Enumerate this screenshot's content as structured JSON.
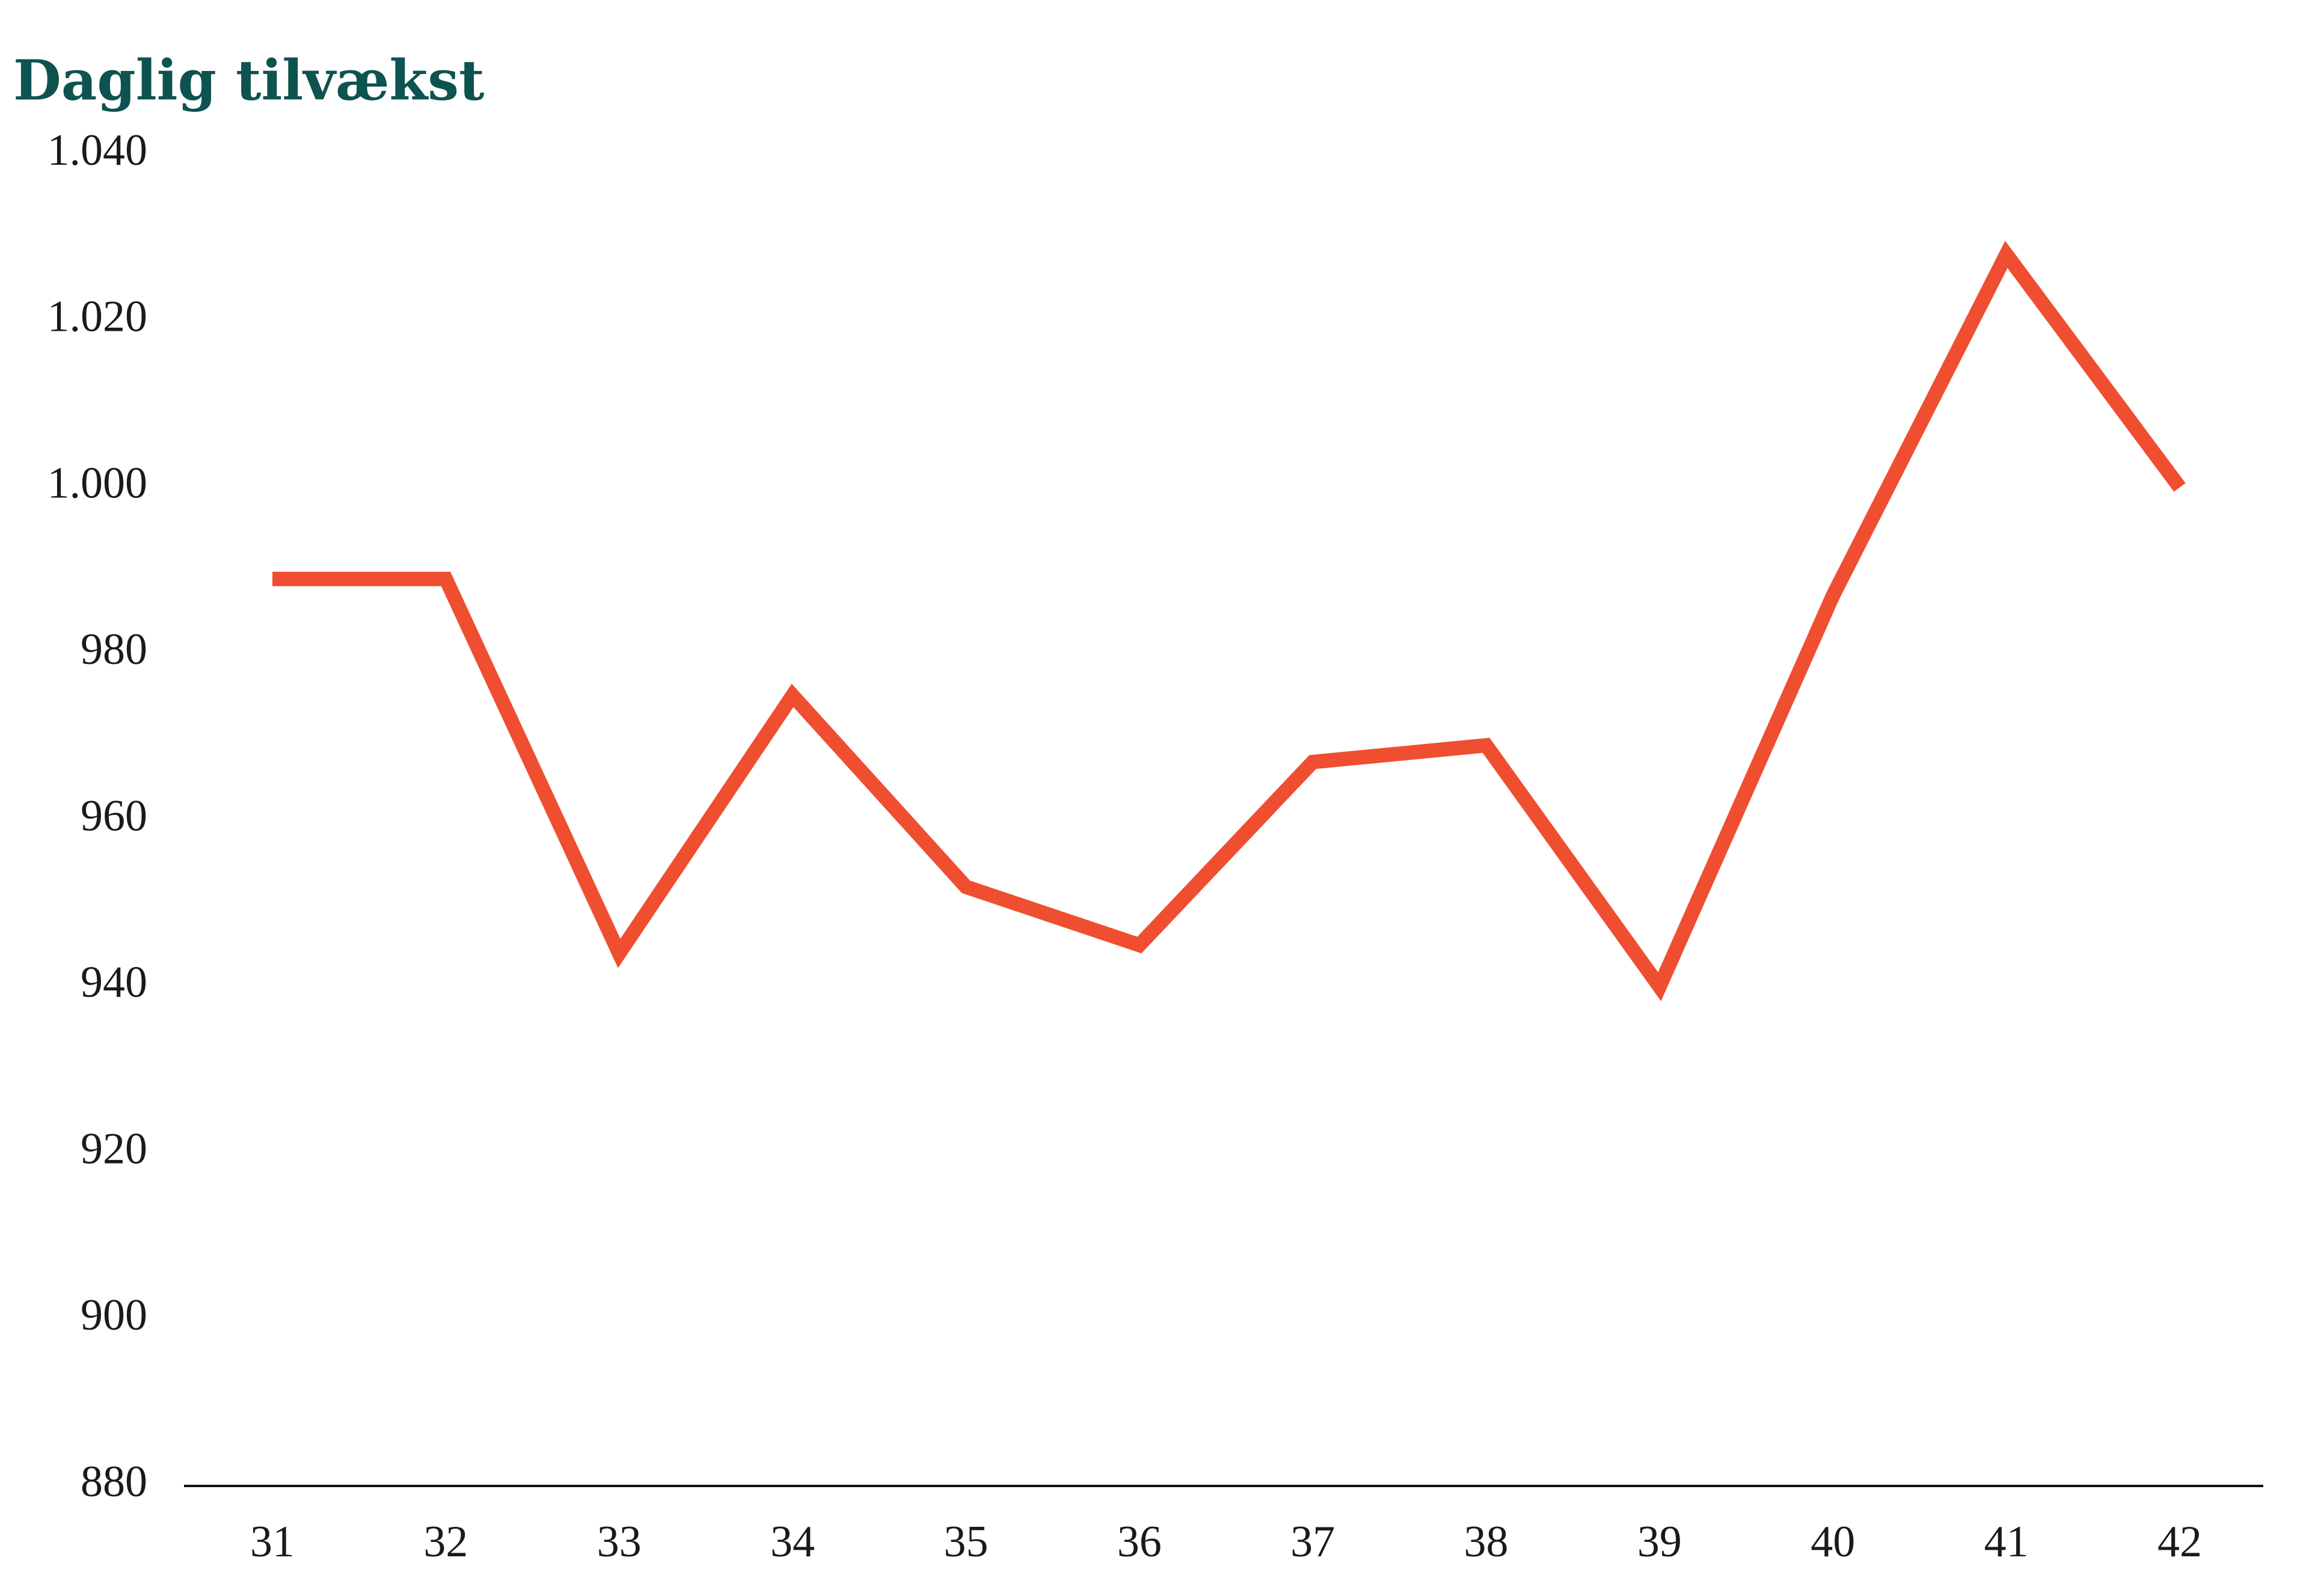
{
  "chart_data": {
    "type": "line",
    "title": "Daglig tilvækst",
    "categories": [
      "31",
      "32",
      "33",
      "34",
      "35",
      "36",
      "37",
      "38",
      "39",
      "40",
      "41",
      "42"
    ],
    "values": [
      989,
      989,
      944,
      975,
      952,
      945,
      967,
      969,
      940,
      987,
      1028,
      1000
    ],
    "color": "#ef4e30",
    "ylim": [
      880,
      1040
    ],
    "yticks": [
      880,
      900,
      920,
      940,
      960,
      980,
      {
        "value": 1000,
        "label": "1.000"
      },
      {
        "value": 1020,
        "label": "1.020"
      },
      {
        "value": 1040,
        "label": "1.040"
      }
    ],
    "grid": false
  }
}
